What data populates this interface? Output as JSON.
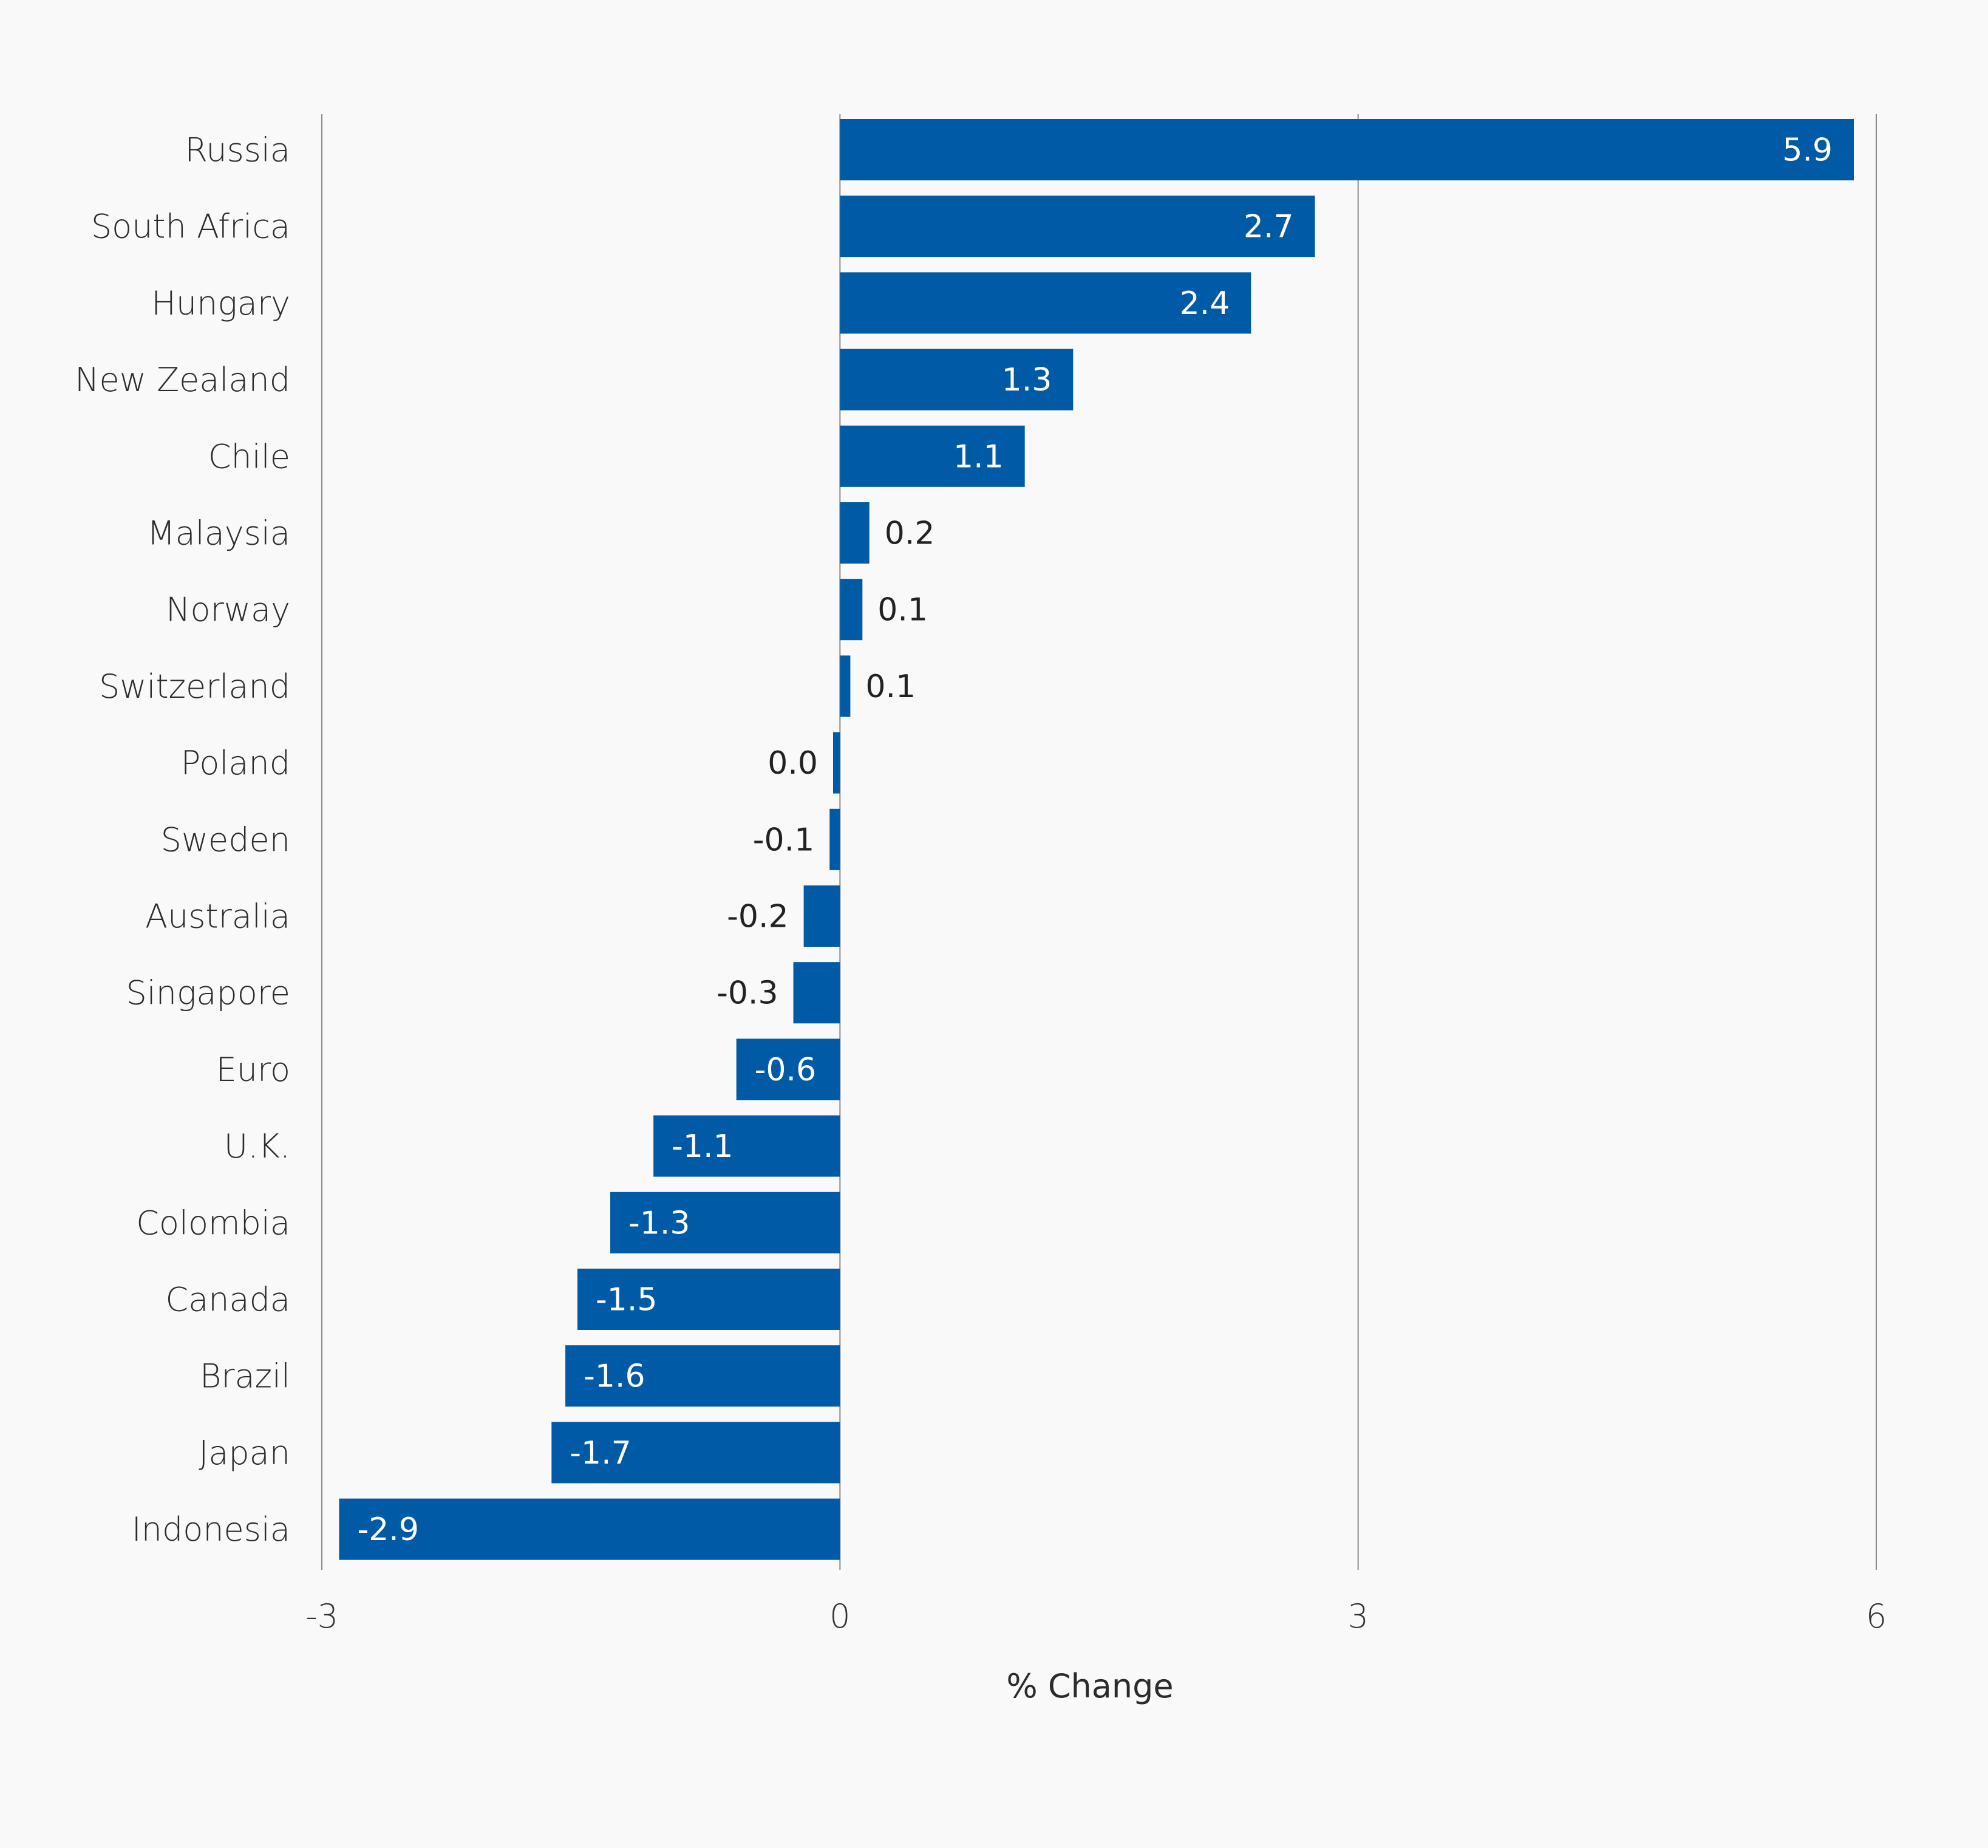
{
  "chart_data": {
    "type": "bar",
    "orientation": "horizontal",
    "categories": [
      "Russia",
      "South Africa",
      "Hungary",
      "New Zealand",
      "Chile",
      "Malaysia",
      "Norway",
      "Switzerland",
      "Poland",
      "Sweden",
      "Australia",
      "Singapore",
      "Euro",
      "U.K.",
      "Colombia",
      "Canada",
      "Brazil",
      "Japan",
      "Indonesia"
    ],
    "values": [
      5.87,
      2.75,
      2.38,
      1.35,
      1.07,
      0.17,
      0.13,
      0.06,
      -0.04,
      -0.06,
      -0.21,
      -0.27,
      -0.6,
      -1.08,
      -1.33,
      -1.52,
      -1.59,
      -1.67,
      -2.9
    ],
    "value_labels": [
      "5.9",
      "2.7",
      "2.4",
      "1.3",
      "1.1",
      "0.2",
      "0.1",
      "0.1",
      "0.0",
      "-0.1",
      "-0.2",
      "-0.3",
      "-0.6",
      "-1.1",
      "-1.3",
      "-1.5",
      "-1.6",
      "-1.7",
      "-2.9"
    ],
    "title": "",
    "xlabel": "% Change",
    "ylabel": "",
    "xlim": [
      -3,
      6
    ],
    "xticks": [
      -3,
      0,
      3,
      6
    ],
    "xtick_labels": [
      "-3",
      "0",
      "3",
      "6"
    ],
    "grid": true,
    "legend": "none",
    "colors": {
      "bar": "#005aa6",
      "label_inside": "#ffffff",
      "label_outside": "#222222",
      "grid": "#8a8a8a",
      "background": "#f9f9f9"
    }
  }
}
